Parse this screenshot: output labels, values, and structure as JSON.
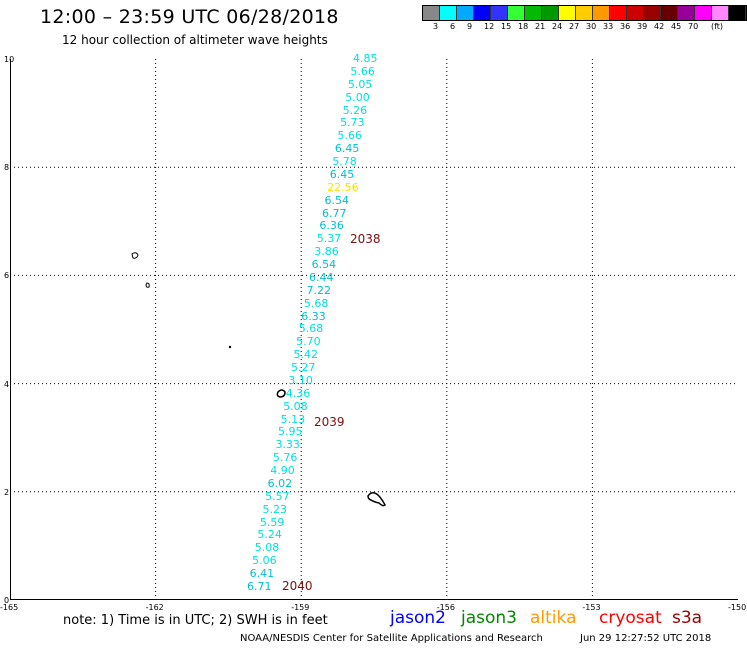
{
  "header": {
    "title": "12:00 – 23:59 UTC 06/28/2018",
    "subtitle": "12 hour collection of altimeter wave heights"
  },
  "legend": {
    "colors": [
      "#888888",
      "#00ffff",
      "#00aaff",
      "#0000ff",
      "#3333ff",
      "#33ff33",
      "#00bb00",
      "#009900",
      "#ffff00",
      "#ffcc00",
      "#ff9900",
      "#ff0000",
      "#cc0000",
      "#990000",
      "#660000",
      "#990099",
      "#ff00ff",
      "#ff88ff",
      "#000000"
    ],
    "labels": [
      "3",
      "6",
      "9",
      "12",
      "15",
      "18",
      "21",
      "24",
      "27",
      "30",
      "33",
      "36",
      "39",
      "42",
      "45",
      "70",
      "(ft)"
    ]
  },
  "axes": {
    "y_ticks": [
      "10",
      "8",
      "6",
      "4",
      "2",
      "0"
    ],
    "x_ticks": [
      "-165",
      "-162",
      "-159",
      "-156",
      "-153",
      "-150"
    ]
  },
  "map_data": {
    "lon_range": [
      -165,
      -150
    ],
    "lat_range": [
      0,
      10
    ],
    "swh_readings": [
      {
        "value": "4.85",
        "color": "#00e0e0"
      },
      {
        "value": "5.66",
        "color": "#00e0e0"
      },
      {
        "value": "5.05",
        "color": "#00e0e0"
      },
      {
        "value": "5.00",
        "color": "#00e0e0"
      },
      {
        "value": "5.26",
        "color": "#00e0e0"
      },
      {
        "value": "5.73",
        "color": "#00e0e0"
      },
      {
        "value": "5.66",
        "color": "#00e0e0"
      },
      {
        "value": "6.45",
        "color": "#00c0d0"
      },
      {
        "value": "5.78",
        "color": "#00e0e0"
      },
      {
        "value": "6.45",
        "color": "#00c0d0"
      },
      {
        "value": "22.56",
        "color": "#ffe000"
      },
      {
        "value": "6.54",
        "color": "#00c0d0"
      },
      {
        "value": "6.77",
        "color": "#00c0d0"
      },
      {
        "value": "6.36",
        "color": "#00c0d0"
      },
      {
        "value": "5.37",
        "color": "#00e0e0"
      },
      {
        "value": "3.86",
        "color": "#00e0e0"
      },
      {
        "value": "6.54",
        "color": "#00c0d0"
      },
      {
        "value": "6.44",
        "color": "#00c0d0"
      },
      {
        "value": "7.22",
        "color": "#00c0d0"
      },
      {
        "value": "5.68",
        "color": "#00e0e0"
      },
      {
        "value": "6.33",
        "color": "#00c0d0"
      },
      {
        "value": "5.68",
        "color": "#00e0e0"
      },
      {
        "value": "5.70",
        "color": "#00e0e0"
      },
      {
        "value": "5.42",
        "color": "#00e0e0"
      },
      {
        "value": "5.27",
        "color": "#00e0e0"
      },
      {
        "value": "3.10",
        "color": "#00e0e0"
      },
      {
        "value": "4.36",
        "color": "#00e0e0"
      },
      {
        "value": "5.08",
        "color": "#00e0e0"
      },
      {
        "value": "5.13",
        "color": "#00e0e0"
      },
      {
        "value": "5.95",
        "color": "#00e0e0"
      },
      {
        "value": "3.33",
        "color": "#00e0e0"
      },
      {
        "value": "5.76",
        "color": "#00e0e0"
      },
      {
        "value": "4.90",
        "color": "#00e0e0"
      },
      {
        "value": "6.02",
        "color": "#00c0d0"
      },
      {
        "value": "5.57",
        "color": "#00e0e0"
      },
      {
        "value": "5.23",
        "color": "#00e0e0"
      },
      {
        "value": "5.59",
        "color": "#00e0e0"
      },
      {
        "value": "5.24",
        "color": "#00e0e0"
      },
      {
        "value": "5.08",
        "color": "#00e0e0"
      },
      {
        "value": "5.06",
        "color": "#00e0e0"
      },
      {
        "value": "6.41",
        "color": "#00c0d0"
      },
      {
        "value": "6.71",
        "color": "#00c0d0"
      }
    ],
    "pass_labels": [
      "2038",
      "2039",
      "2040"
    ]
  },
  "footer": {
    "note": "note: 1) Time is in UTC; 2) SWH is in feet",
    "satellites": [
      {
        "name": "jason2",
        "color": "#0000ff"
      },
      {
        "name": "jason3",
        "color": "#008800"
      },
      {
        "name": "altika",
        "color": "#ff9900"
      },
      {
        "name": "cryosat",
        "color": "#ff0000"
      },
      {
        "name": "s3a",
        "color": "#990000"
      }
    ],
    "credit": "NOAA/NESDIS Center for Satellite Applications and Research",
    "timestamp": "Jun 29 12:27:52 UTC 2018"
  }
}
